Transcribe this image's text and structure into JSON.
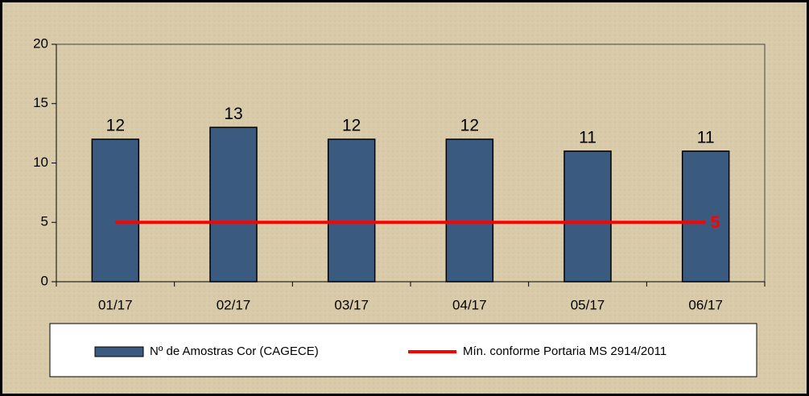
{
  "chart_data": {
    "type": "bar",
    "categories": [
      "01/17",
      "02/17",
      "03/17",
      "04/17",
      "05/17",
      "06/17"
    ],
    "series": [
      {
        "name": "Nº de Amostras Cor (CAGECE)",
        "type": "bar",
        "color": "#3b5a80",
        "values": [
          12,
          13,
          12,
          12,
          11,
          11
        ]
      },
      {
        "name": "Mín. conforme Portaria MS 2914/2011",
        "type": "line",
        "color": "#ff0000",
        "values": [
          5,
          5,
          5,
          5,
          5,
          5
        ]
      }
    ],
    "ylim": [
      0,
      20
    ],
    "yticks": [
      0,
      5,
      10,
      15,
      20
    ],
    "legend": "bottom"
  }
}
